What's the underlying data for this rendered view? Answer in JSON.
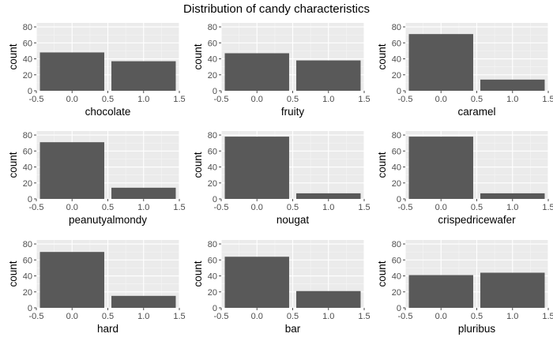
{
  "title": "Distribution of candy characteristics",
  "colors": {
    "panel_bg": "#ebebeb",
    "grid_major": "#ffffff",
    "grid_minor": "#f5f5f5",
    "bar": "#595959",
    "tick": "#4d4d4d",
    "text": "#000000"
  },
  "chart_data": [
    {
      "type": "bar",
      "xlabel": "chocolate",
      "ylabel": "count",
      "categories": [
        0,
        1
      ],
      "values": [
        48,
        37
      ],
      "xlim": [
        -0.5,
        1.5
      ],
      "ylim": [
        0,
        85
      ],
      "xticks": [
        "-0.5",
        "0.0",
        "0.5",
        "1.0",
        "1.5"
      ],
      "yticks": [
        "0",
        "20",
        "40",
        "60",
        "80"
      ]
    },
    {
      "type": "bar",
      "xlabel": "fruity",
      "ylabel": "count",
      "categories": [
        0,
        1
      ],
      "values": [
        47,
        38
      ],
      "xlim": [
        -0.5,
        1.5
      ],
      "ylim": [
        0,
        85
      ],
      "xticks": [
        "-0.5",
        "0.0",
        "0.5",
        "1.0",
        "1.5"
      ],
      "yticks": [
        "0",
        "20",
        "40",
        "60",
        "80"
      ]
    },
    {
      "type": "bar",
      "xlabel": "caramel",
      "ylabel": "count",
      "categories": [
        0,
        1
      ],
      "values": [
        71,
        14
      ],
      "xlim": [
        -0.5,
        1.5
      ],
      "ylim": [
        0,
        85
      ],
      "xticks": [
        "-0.5",
        "0.0",
        "0.5",
        "1.0",
        "1.5"
      ],
      "yticks": [
        "0",
        "20",
        "40",
        "60",
        "80"
      ]
    },
    {
      "type": "bar",
      "xlabel": "peanutyalmondy",
      "ylabel": "count",
      "categories": [
        0,
        1
      ],
      "values": [
        71,
        14
      ],
      "xlim": [
        -0.5,
        1.5
      ],
      "ylim": [
        0,
        85
      ],
      "xticks": [
        "-0.5",
        "0.0",
        "0.5",
        "1.0",
        "1.5"
      ],
      "yticks": [
        "0",
        "20",
        "40",
        "60",
        "80"
      ]
    },
    {
      "type": "bar",
      "xlabel": "nougat",
      "ylabel": "count",
      "categories": [
        0,
        1
      ],
      "values": [
        78,
        7
      ],
      "xlim": [
        -0.5,
        1.5
      ],
      "ylim": [
        0,
        85
      ],
      "xticks": [
        "-0.5",
        "0.0",
        "0.5",
        "1.0",
        "1.5"
      ],
      "yticks": [
        "0",
        "20",
        "40",
        "60",
        "80"
      ]
    },
    {
      "type": "bar",
      "xlabel": "crispedricewafer",
      "ylabel": "count",
      "categories": [
        0,
        1
      ],
      "values": [
        78,
        7
      ],
      "xlim": [
        -0.5,
        1.5
      ],
      "ylim": [
        0,
        85
      ],
      "xticks": [
        "-0.5",
        "0.0",
        "0.5",
        "1.0",
        "1.5"
      ],
      "yticks": [
        "0",
        "20",
        "40",
        "60",
        "80"
      ]
    },
    {
      "type": "bar",
      "xlabel": "hard",
      "ylabel": "count",
      "categories": [
        0,
        1
      ],
      "values": [
        70,
        15
      ],
      "xlim": [
        -0.5,
        1.5
      ],
      "ylim": [
        0,
        85
      ],
      "xticks": [
        "-0.5",
        "0.0",
        "0.5",
        "1.0",
        "1.5"
      ],
      "yticks": [
        "0",
        "20",
        "40",
        "60",
        "80"
      ]
    },
    {
      "type": "bar",
      "xlabel": "bar",
      "ylabel": "count",
      "categories": [
        0,
        1
      ],
      "values": [
        64,
        21
      ],
      "xlim": [
        -0.5,
        1.5
      ],
      "ylim": [
        0,
        85
      ],
      "xticks": [
        "-0.5",
        "0.0",
        "0.5",
        "1.0",
        "1.5"
      ],
      "yticks": [
        "0",
        "20",
        "40",
        "60",
        "80"
      ]
    },
    {
      "type": "bar",
      "xlabel": "pluribus",
      "ylabel": "count",
      "categories": [
        0,
        1
      ],
      "values": [
        41,
        44
      ],
      "xlim": [
        -0.5,
        1.5
      ],
      "ylim": [
        0,
        85
      ],
      "xticks": [
        "-0.5",
        "0.0",
        "0.5",
        "1.0",
        "1.5"
      ],
      "yticks": [
        "0",
        "20",
        "40",
        "60",
        "80"
      ]
    }
  ]
}
